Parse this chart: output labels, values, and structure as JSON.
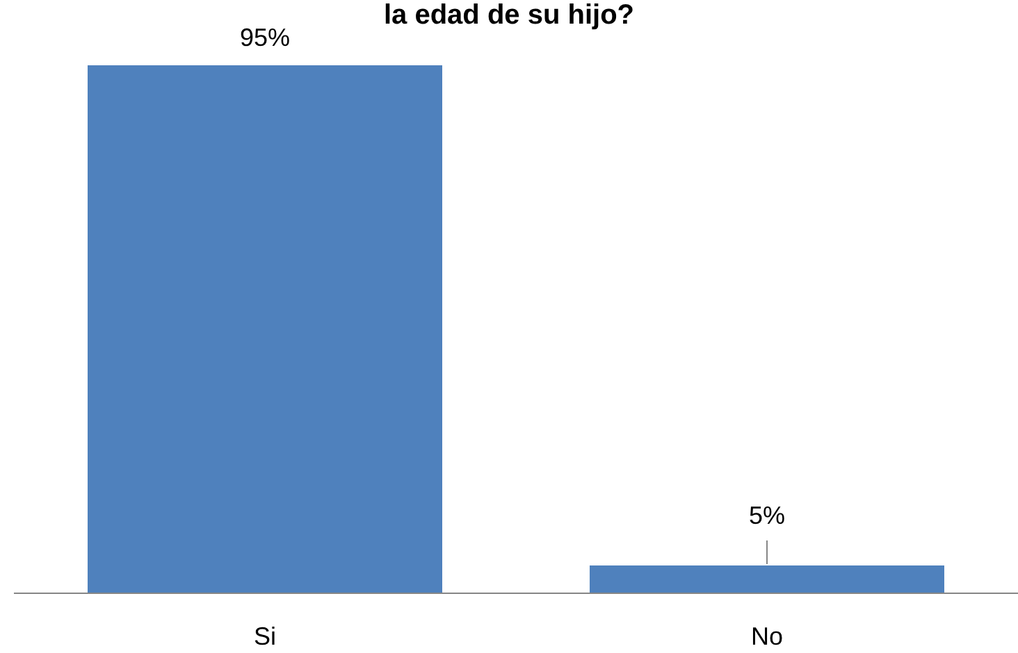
{
  "chart_data": {
    "type": "bar",
    "title": "la edad de su hijo?",
    "categories": [
      "Si",
      "No"
    ],
    "values": [
      95,
      5
    ],
    "color": "#4f81bd",
    "value_labels": [
      "95%",
      "5%"
    ]
  }
}
